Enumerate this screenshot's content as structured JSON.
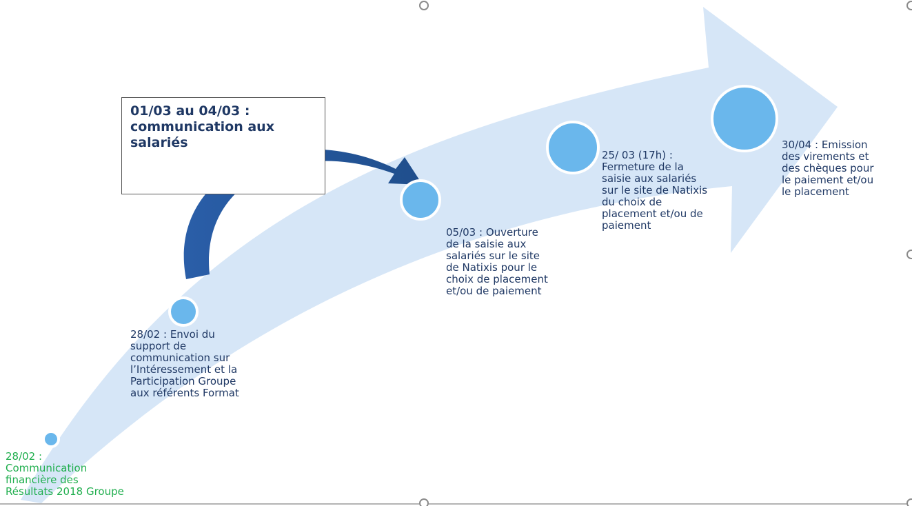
{
  "diagram": {
    "milestones": [
      {
        "id": "m1",
        "text": "28/02 :\nCommunication\nfinancière  des\nRésultats 2018 Groupe",
        "color": "#1fae4d"
      },
      {
        "id": "m2",
        "text": "28/02 : Envoi du\nsupport de\ncommunication sur\nl’Intéressement et la\nParticipation Groupe\naux référents Format"
      },
      {
        "id": "m3",
        "text": "05/03 : Ouverture\nde la saisie aux\nsalariés sur le site\nde Natixis pour le\nchoix de placement\net/ou de paiement"
      },
      {
        "id": "m4",
        "text": "25/ 03 (17h) :\nFermeture de la\nsaisie aux salariés\nsur le site de Natixis\ndu choix de\nplacement et/ou de\npaiement"
      },
      {
        "id": "m5",
        "text": "30/04 : Emission\ndes virements et\ndes chèques pour\nle paiement et/ou\nle placement"
      }
    ],
    "callout": {
      "text": "01/03 au 04/03 :\ncommunication aux\nsalariés"
    },
    "colors": {
      "arrow_fill": "#d6e6f7",
      "circle_fill": "#6ab7ec",
      "curved_arrow": "#1f4e8c",
      "text": "#1f3864",
      "text_green": "#1fae4d"
    }
  }
}
